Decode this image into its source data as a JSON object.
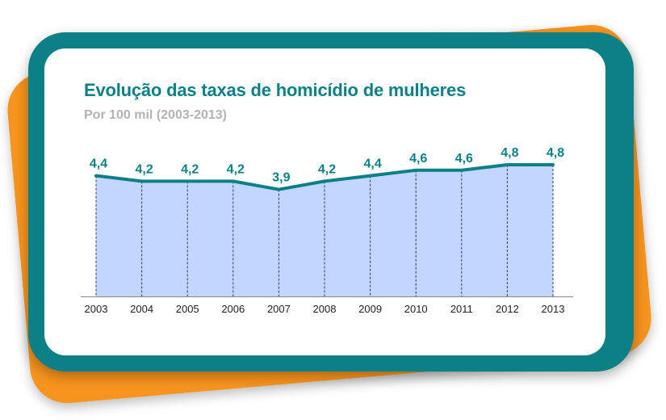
{
  "chart_data": {
    "type": "area",
    "title": "Evolução das taxas de homicídio de mulheres",
    "subtitle": "Por 100 mil (2003-2013)",
    "categories": [
      "2003",
      "2004",
      "2005",
      "2006",
      "2007",
      "2008",
      "2009",
      "2010",
      "2011",
      "2012",
      "2013"
    ],
    "values": [
      4.4,
      4.2,
      4.2,
      4.2,
      3.9,
      4.2,
      4.4,
      4.6,
      4.6,
      4.8,
      4.8
    ],
    "value_labels": [
      "4,4",
      "4,2",
      "4,2",
      "4,2",
      "3,9",
      "4,2",
      "4,4",
      "4,6",
      "4,6",
      "4,8",
      "4,8"
    ],
    "ylim": [
      0,
      4.8
    ],
    "grid": false,
    "colors": {
      "line": "#0b8086",
      "area": "#c2d6ff",
      "frame_outer": "#f7941d",
      "frame_inner": "#0b8086"
    }
  }
}
